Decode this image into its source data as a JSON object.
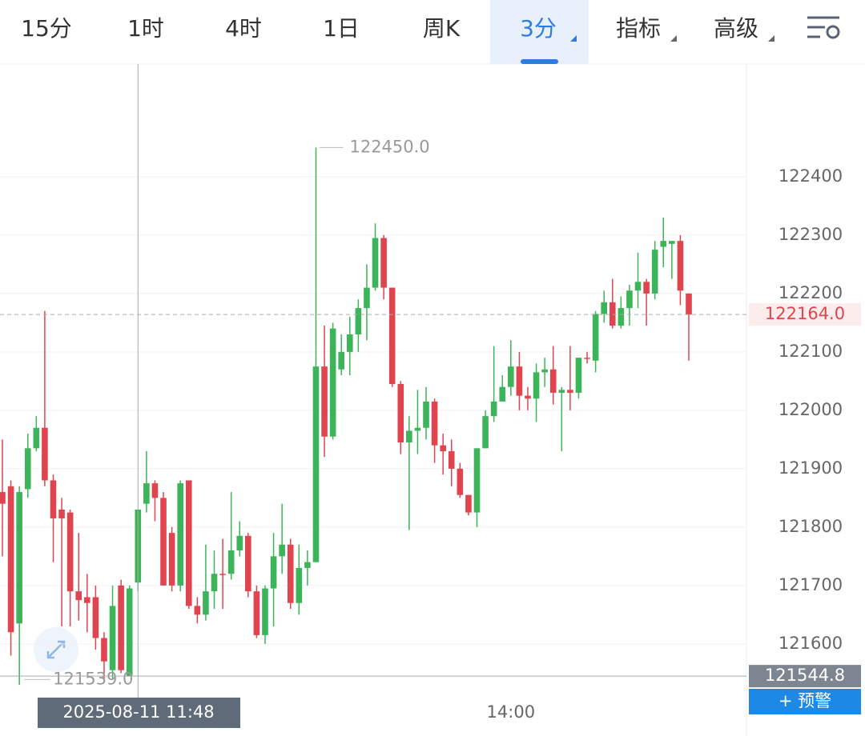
{
  "tabs": [
    {
      "label": "15分"
    },
    {
      "label": "1时"
    },
    {
      "label": "4时"
    },
    {
      "label": "1日"
    },
    {
      "label": "周K"
    },
    {
      "label": "3分",
      "active": true,
      "menu": true
    },
    {
      "label": "指标",
      "menu": true
    },
    {
      "label": "高级",
      "menu": true
    }
  ],
  "alert_button": "+ 预警",
  "chart_data": {
    "type": "candlestick",
    "up_color": "#3cb45a",
    "down_color": "#e0454f",
    "categories": [
      null,
      null,
      null,
      null,
      null,
      null,
      null,
      null,
      null,
      null,
      null,
      null,
      null,
      null,
      null,
      null,
      null,
      null,
      null,
      null,
      null,
      null,
      null,
      null,
      null,
      null,
      null,
      null,
      null,
      null,
      null,
      null,
      null,
      null,
      null,
      null,
      null,
      null,
      null,
      null,
      null,
      null,
      null,
      null,
      null,
      null,
      null,
      null,
      null,
      null,
      null,
      null,
      null,
      null,
      null,
      null,
      null,
      null,
      null,
      null,
      "14:00",
      null,
      null,
      null,
      null,
      null,
      null,
      null,
      null,
      null,
      null,
      null,
      null,
      null,
      null,
      null,
      null,
      null,
      null,
      null,
      null,
      null
    ],
    "open": [
      121860,
      121870,
      121635,
      121865,
      121935,
      121970,
      121880,
      121830,
      121825,
      121690,
      121680,
      121680,
      121610,
      121555,
      121700,
      121545,
      121705,
      121840,
      121875,
      121850,
      121790,
      121700,
      121880,
      121665,
      121650,
      121690,
      121720,
      121720,
      121760,
      121785,
      121690,
      121615,
      121695,
      121750,
      121770,
      121670,
      121730,
      121740,
      122075,
      121955,
      122070,
      122100,
      122130,
      122175,
      122210,
      122295,
      122210,
      122045,
      121945,
      121965,
      121970,
      122015,
      121940,
      121930,
      121900,
      121855,
      121825,
      121935,
      121990,
      122015,
      122040,
      122075,
      122025,
      122020,
      122065,
      122070,
      122030,
      122035,
      122030,
      122090,
      122085,
      122165,
      122185,
      122145,
      122175,
      122205,
      122220,
      122200,
      122280,
      122285,
      122290,
      122200
    ],
    "high": [
      121950,
      121880,
      121870,
      121960,
      121990,
      122170,
      121890,
      121850,
      121830,
      121790,
      121720,
      121700,
      121620,
      121700,
      121710,
      121700,
      121830,
      121930,
      121880,
      121860,
      121800,
      121880,
      121880,
      121680,
      121770,
      121760,
      121780,
      121860,
      121810,
      121790,
      121700,
      121700,
      121790,
      121840,
      121780,
      121770,
      121760,
      122450,
      122145,
      122150,
      122130,
      122160,
      122190,
      122250,
      122320,
      122300,
      122210,
      122050,
      121990,
      122035,
      122040,
      122020,
      121960,
      121950,
      121910,
      121855,
      121935,
      122000,
      122110,
      122060,
      122120,
      122100,
      122040,
      122080,
      122090,
      122110,
      122040,
      122110,
      122090,
      122100,
      122170,
      122205,
      122225,
      122195,
      122215,
      122270,
      122225,
      122290,
      122330,
      122290,
      122300,
      122200
    ],
    "low": [
      121750,
      121580,
      121530,
      121850,
      121930,
      121870,
      121740,
      121630,
      121630,
      121640,
      121620,
      121590,
      121539,
      121540,
      121550,
      121545,
      121690,
      121825,
      121810,
      121700,
      121690,
      121690,
      121660,
      121635,
      121640,
      121660,
      121660,
      121710,
      121750,
      121680,
      121610,
      121600,
      121630,
      121720,
      121660,
      121650,
      121700,
      121740,
      121920,
      121950,
      122060,
      122060,
      122100,
      122120,
      122205,
      122190,
      122040,
      121925,
      121795,
      121925,
      121950,
      121910,
      121890,
      121870,
      121850,
      121820,
      121800,
      121935,
      121980,
      122015,
      122025,
      122000,
      122000,
      121980,
      122040,
      122010,
      121930,
      122000,
      122020,
      122080,
      122065,
      122150,
      122140,
      122140,
      122145,
      122175,
      122145,
      122190,
      122245,
      122225,
      122180,
      122085
    ],
    "close": [
      121840,
      121620,
      121860,
      121935,
      121970,
      121880,
      121815,
      121815,
      121690,
      121675,
      121670,
      121610,
      121570,
      121665,
      121555,
      121695,
      121830,
      121875,
      121850,
      121700,
      121700,
      121875,
      121665,
      121650,
      121690,
      121720,
      121718,
      121760,
      121785,
      121690,
      121615,
      121695,
      121750,
      121770,
      121670,
      121730,
      121740,
      122075,
      121955,
      122140,
      122100,
      122130,
      122175,
      122210,
      122295,
      122210,
      122045,
      121945,
      121965,
      121970,
      122015,
      121940,
      121930,
      121900,
      121855,
      121825,
      121935,
      121990,
      122015,
      122040,
      122075,
      122025,
      122020,
      122065,
      122070,
      122030,
      122035,
      122030,
      122090,
      122088,
      122165,
      122185,
      122145,
      122175,
      122205,
      122220,
      122200,
      122275,
      122290,
      122290,
      122205,
      122164
    ],
    "ylim": [
      121545,
      122593
    ],
    "yticks": [
      121600,
      121700,
      121800,
      121900,
      122000,
      122100,
      122200,
      122300,
      122400
    ],
    "grid": true,
    "last_price": {
      "value": 122164,
      "label": "122164.0"
    },
    "high_label": {
      "value": 122450,
      "label": "122450.0"
    },
    "low_label": {
      "value": 121539,
      "label": "121539.0"
    },
    "crosshair": {
      "x": "2025-08-11 11:48",
      "y": 121544.8
    }
  }
}
